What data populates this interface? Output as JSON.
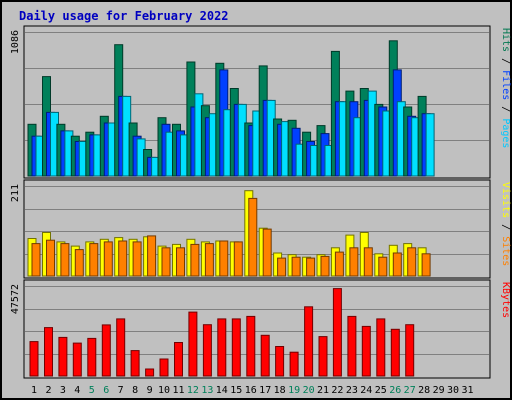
{
  "chart_data": {
    "type": "bar",
    "title": "Daily usage for February 2022",
    "x": [
      "1",
      "2",
      "3",
      "4",
      "5",
      "6",
      "7",
      "8",
      "9",
      "10",
      "11",
      "12",
      "13",
      "14",
      "15",
      "16",
      "17",
      "18",
      "19",
      "20",
      "21",
      "22",
      "23",
      "24",
      "25",
      "26",
      "27",
      "28",
      "29",
      "30",
      "31"
    ],
    "weekend_days": [
      "5",
      "6",
      "12",
      "13",
      "19",
      "20",
      "26",
      "27"
    ],
    "panels": [
      {
        "id": "top",
        "y_max_label": "1086",
        "ylim": [
          0,
          1086
        ],
        "right_labels": [
          {
            "text": "Pages",
            "color": "#00c8ff"
          },
          {
            "text": " / ",
            "color": "#000000"
          },
          {
            "text": "Files",
            "color": "#0040ff"
          },
          {
            "text": " / ",
            "color": "#000000"
          },
          {
            "text": "Hits",
            "color": "#007850"
          }
        ],
        "series": [
          {
            "name": "Hits",
            "color": "#00805a",
            "values": [
              390,
              750,
              390,
              300,
              330,
              450,
              990,
              400,
              200,
              440,
              390,
              860,
              530,
              850,
              660,
              400,
              830,
              430,
              420,
              330,
              380,
              940,
              640,
              660,
              540,
              1020,
              520,
              600,
              0,
              0,
              0
            ]
          },
          {
            "name": "Files",
            "color": "#0040ff",
            "values": [
              300,
              480,
              340,
              260,
              310,
              400,
              600,
              300,
              140,
              390,
              340,
              520,
              440,
              800,
              540,
              380,
              570,
              390,
              360,
              260,
              320,
              560,
              560,
              570,
              520,
              800,
              450,
              470,
              0,
              0,
              0
            ]
          },
          {
            "name": "Pages",
            "color": "#00e0ff",
            "values": [
              300,
              480,
              340,
              260,
              310,
              400,
              600,
              280,
              140,
              330,
              310,
              620,
              470,
              500,
              540,
              490,
              570,
              410,
              240,
              230,
              230,
              560,
              440,
              640,
              490,
              560,
              440,
              470,
              0,
              0,
              0
            ]
          }
        ]
      },
      {
        "id": "middle",
        "y_max_label": "211",
        "ylim": [
          0,
          211
        ],
        "right_labels": [
          {
            "text": "Sites",
            "color": "#ff8000"
          },
          {
            "text": " / ",
            "color": "#000000"
          },
          {
            "text": "Visits",
            "color": "#ffff00"
          }
        ],
        "series": [
          {
            "name": "Visits",
            "color": "#ffff00",
            "values": [
              88,
              102,
              80,
              70,
              80,
              86,
              90,
              86,
              92,
              70,
              74,
              86,
              80,
              82,
              80,
              200,
              112,
              54,
              50,
              44,
              50,
              66,
              96,
              102,
              52,
              72,
              76,
              66,
              0,
              0,
              0
            ]
          },
          {
            "name": "Sites",
            "color": "#ff8000",
            "values": [
              76,
              84,
              76,
              62,
              76,
              80,
              82,
              80,
              94,
              66,
              66,
              74,
              76,
              82,
              80,
              182,
              110,
              42,
              44,
              42,
              46,
              56,
              66,
              66,
              44,
              54,
              66,
              52,
              0,
              0,
              0
            ]
          }
        ]
      },
      {
        "id": "bottom",
        "y_max_label": "47572",
        "ylim": [
          0,
          47572
        ],
        "right_labels": [
          {
            "text": "KBytes",
            "color": "#ff0000"
          }
        ],
        "series": [
          {
            "name": "KBytes",
            "color": "#ff0000",
            "values": [
              18200,
              25600,
              20400,
              17400,
              19900,
              27000,
              30200,
              13400,
              3700,
              9000,
              17700,
              33800,
              27100,
              30200,
              30200,
              31500,
              21500,
              15600,
              12600,
              36600,
              20800,
              46200,
              31500,
              26200,
              30200,
              24700,
              27100,
              0,
              0,
              0,
              0
            ]
          }
        ]
      }
    ]
  }
}
